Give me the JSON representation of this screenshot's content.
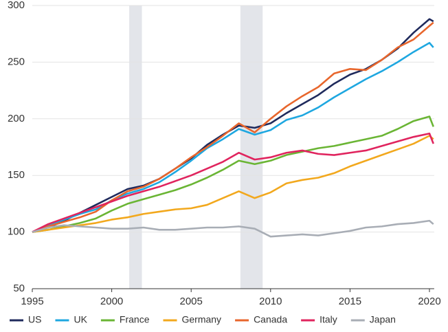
{
  "chart_data": {
    "type": "line",
    "x": [
      1995,
      1996,
      1997,
      1998,
      1999,
      2000,
      2001,
      2002,
      2003,
      2004,
      2005,
      2006,
      2007,
      2008,
      2009,
      2010,
      2011,
      2012,
      2013,
      2014,
      2015,
      2016,
      2017,
      2018,
      2019,
      2020,
      2020.25
    ],
    "series": [
      {
        "name": "US",
        "color": "#1f2a5c",
        "values": [
          100,
          104,
          110,
          117,
          124,
          131,
          138,
          141,
          147,
          156,
          165,
          177,
          186,
          194,
          192,
          196,
          205,
          213,
          221,
          231,
          239,
          244,
          252,
          262,
          276,
          288,
          286
        ]
      },
      {
        "name": "UK",
        "color": "#1ea7e0",
        "values": [
          100,
          106,
          111,
          116,
          120,
          128,
          134,
          138,
          144,
          153,
          163,
          174,
          182,
          191,
          186,
          190,
          199,
          203,
          210,
          219,
          227,
          235,
          242,
          250,
          259,
          267,
          263
        ]
      },
      {
        "name": "France",
        "color": "#6ab534",
        "values": [
          100,
          102,
          105,
          108,
          112,
          119,
          125,
          129,
          133,
          137,
          142,
          148,
          155,
          163,
          160,
          163,
          168,
          171,
          174,
          176,
          179,
          182,
          185,
          191,
          198,
          202,
          193
        ]
      },
      {
        "name": "Germany",
        "color": "#f2a81d",
        "values": [
          100,
          102,
          104,
          106,
          108,
          111,
          113,
          116,
          118,
          120,
          121,
          124,
          130,
          136,
          130,
          135,
          143,
          146,
          148,
          152,
          158,
          163,
          168,
          173,
          178,
          185,
          182
        ]
      },
      {
        "name": "Canada",
        "color": "#e8662c",
        "values": [
          100,
          105,
          109,
          113,
          118,
          128,
          136,
          140,
          147,
          156,
          166,
          175,
          185,
          196,
          188,
          200,
          211,
          220,
          228,
          240,
          244,
          243,
          252,
          263,
          270,
          282,
          285
        ]
      },
      {
        "name": "Italy",
        "color": "#e0245e",
        "values": [
          100,
          107,
          112,
          117,
          122,
          127,
          132,
          136,
          140,
          145,
          150,
          156,
          162,
          170,
          164,
          166,
          170,
          172,
          169,
          168,
          170,
          172,
          176,
          180,
          184,
          187,
          178
        ]
      },
      {
        "name": "Japan",
        "color": "#a8adb5",
        "values": [
          100,
          104,
          106,
          105,
          104,
          103,
          103,
          104,
          102,
          102,
          103,
          104,
          104,
          105,
          103,
          96,
          97,
          98,
          97,
          99,
          101,
          104,
          105,
          107,
          108,
          110,
          107
        ]
      }
    ],
    "shaded_ranges": [
      [
        2001.1,
        2001.9
      ],
      [
        2008.1,
        2009.5
      ]
    ],
    "xlim": [
      1995,
      2020.3
    ],
    "xticks": [
      1995,
      2000,
      2005,
      2010,
      2015,
      2020
    ],
    "ylim": [
      50,
      300
    ],
    "yticks": [
      50,
      100,
      150,
      200,
      250,
      300
    ],
    "grid": true,
    "legend": "bottom"
  }
}
